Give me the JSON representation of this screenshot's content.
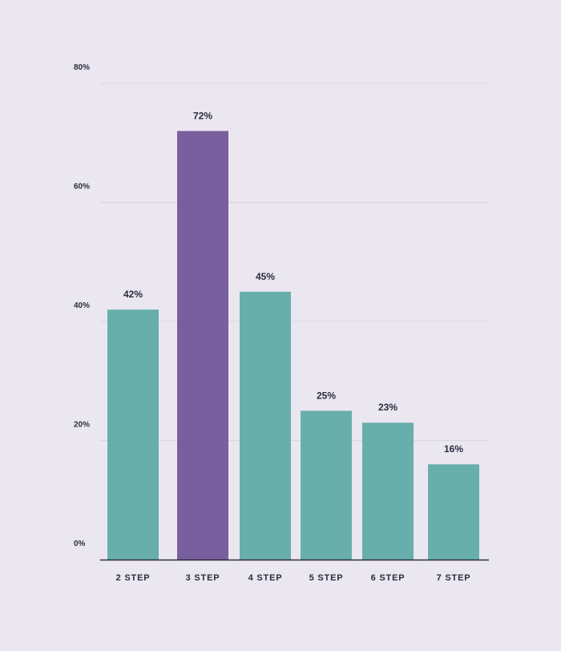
{
  "chart_data": {
    "type": "bar",
    "title": "",
    "xlabel": "",
    "ylabel": "",
    "categories": [
      "2 STEP",
      "3 STEP",
      "4 STEP",
      "5 STEP",
      "6 STEP",
      "7 STEP"
    ],
    "values": [
      42,
      72,
      45,
      25,
      23,
      16
    ],
    "data_labels": [
      "42%",
      "72%",
      "45%",
      "25%",
      "23%",
      "16%"
    ],
    "highlight_index": 1,
    "ylim": [
      0,
      80
    ],
    "yticks": [
      0,
      20,
      40,
      60,
      80
    ],
    "ytick_labels": [
      "0%",
      "20%",
      "40%",
      "60%",
      "80%"
    ],
    "grid": true,
    "legend": "none",
    "colors": {
      "bar": "#68afab",
      "highlight": "#7a5f9e",
      "grid": "#d9d4e2",
      "axis": "#2d2a3e",
      "text": "#2d2a3e",
      "background": "#ebe7f1"
    }
  }
}
